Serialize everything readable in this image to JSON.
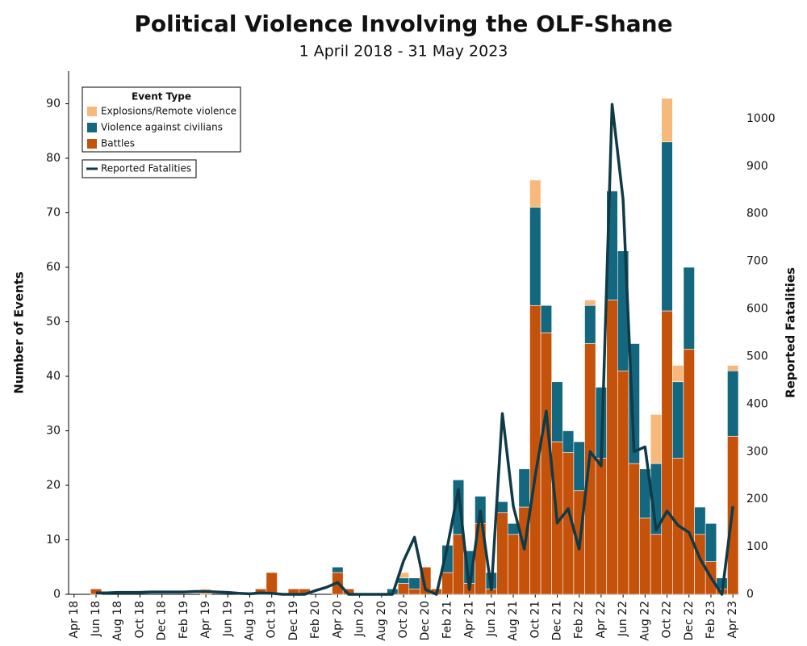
{
  "chart_data": {
    "type": "bar",
    "stacked": true,
    "title": "Political Violence Involving the OLF-Shane",
    "subtitle": "1 April 2018 - 31 May 2023",
    "y_label": "Number of Events",
    "y2_label": "Reported Fatalities",
    "legend_title": "Event Type",
    "legend": "upper left",
    "categories": [
      "Apr 18",
      null,
      "Jun 18",
      null,
      "Aug 18",
      null,
      "Oct 18",
      null,
      "Dec 18",
      null,
      "Feb 19",
      null,
      "Apr 19",
      null,
      "Jun 19",
      null,
      "Aug 19",
      null,
      "Oct 19",
      null,
      "Dec 19",
      null,
      "Feb 20",
      null,
      "Apr 20",
      null,
      "Jun 20",
      null,
      "Aug 20",
      null,
      "Oct 20",
      null,
      "Dec 20",
      null,
      "Feb 21",
      null,
      "Apr 21",
      null,
      "Jun 21",
      null,
      "Aug 21",
      null,
      "Oct 21",
      null,
      "Dec 21",
      null,
      "Feb 22",
      null,
      "Apr 22",
      null,
      "Jun 22",
      null,
      "Aug 22",
      null,
      "Oct 22",
      null,
      "Dec 22",
      null,
      "Feb 23",
      null,
      "Apr 23"
    ],
    "series": [
      {
        "name": "Battles",
        "color": "#c5520a",
        "values": [
          0,
          0,
          1,
          0,
          0,
          0,
          0,
          0,
          0,
          0,
          0,
          0,
          0,
          0,
          0,
          0,
          0,
          1,
          4,
          0,
          1,
          1,
          0,
          0,
          4,
          1,
          0,
          0,
          0,
          0,
          2,
          1,
          5,
          1,
          4,
          11,
          2,
          13,
          1,
          15,
          11,
          16,
          53,
          48,
          28,
          26,
          19,
          46,
          25,
          54,
          41,
          24,
          14,
          11,
          52,
          25,
          45,
          11,
          6,
          1,
          29
        ]
      },
      {
        "name": "Violence against civilians",
        "color": "#13677f",
        "values": [
          0,
          0,
          0,
          0,
          0,
          0,
          0,
          0,
          0,
          0,
          0,
          0,
          0,
          0,
          0,
          0,
          0,
          0,
          0,
          0,
          0,
          0,
          0,
          0,
          1,
          0,
          0,
          0,
          0,
          1,
          1,
          2,
          0,
          0,
          5,
          10,
          6,
          5,
          3,
          2,
          2,
          7,
          18,
          5,
          11,
          4,
          9,
          7,
          13,
          20,
          22,
          22,
          9,
          13,
          31,
          14,
          15,
          5,
          7,
          2,
          12
        ]
      },
      {
        "name": "Explosions/Remote violence",
        "color": "#f7b97a",
        "values": [
          0,
          0,
          0,
          0,
          0,
          0,
          0,
          0,
          0,
          0,
          0,
          0,
          1,
          0,
          0,
          0,
          0,
          0,
          0,
          0,
          0,
          0,
          0,
          0,
          0,
          0,
          0,
          0,
          0,
          0,
          1,
          0,
          0,
          0,
          0,
          0,
          0,
          0,
          0,
          0,
          0,
          0,
          5,
          0,
          0,
          0,
          0,
          1,
          0,
          0,
          0,
          0,
          0,
          9,
          8,
          3,
          0,
          0,
          0,
          0,
          1
        ]
      },
      {
        "name": "Reported Fatalities",
        "type": "line",
        "axis": "y2",
        "color": "#0f3a47",
        "values": [
          null,
          null,
          3,
          3,
          4,
          4,
          4,
          5,
          5,
          5,
          5,
          6,
          6,
          5,
          4,
          2,
          1,
          3,
          2,
          0,
          0,
          0,
          8,
          15,
          25,
          0,
          0,
          0,
          0,
          0,
          70,
          120,
          10,
          0,
          100,
          220,
          10,
          175,
          10,
          380,
          185,
          95,
          250,
          385,
          150,
          180,
          95,
          300,
          270,
          1030,
          830,
          300,
          310,
          135,
          175,
          145,
          130,
          75,
          35,
          0,
          185
        ]
      }
    ],
    "ylim": [
      0,
      96
    ],
    "yticks": [
      0,
      10,
      20,
      30,
      40,
      50,
      60,
      70,
      80,
      90
    ],
    "y2lim": [
      0,
      1100
    ],
    "y2ticks": [
      0,
      100,
      200,
      300,
      400,
      500,
      600,
      700,
      800,
      900,
      1000
    ]
  }
}
